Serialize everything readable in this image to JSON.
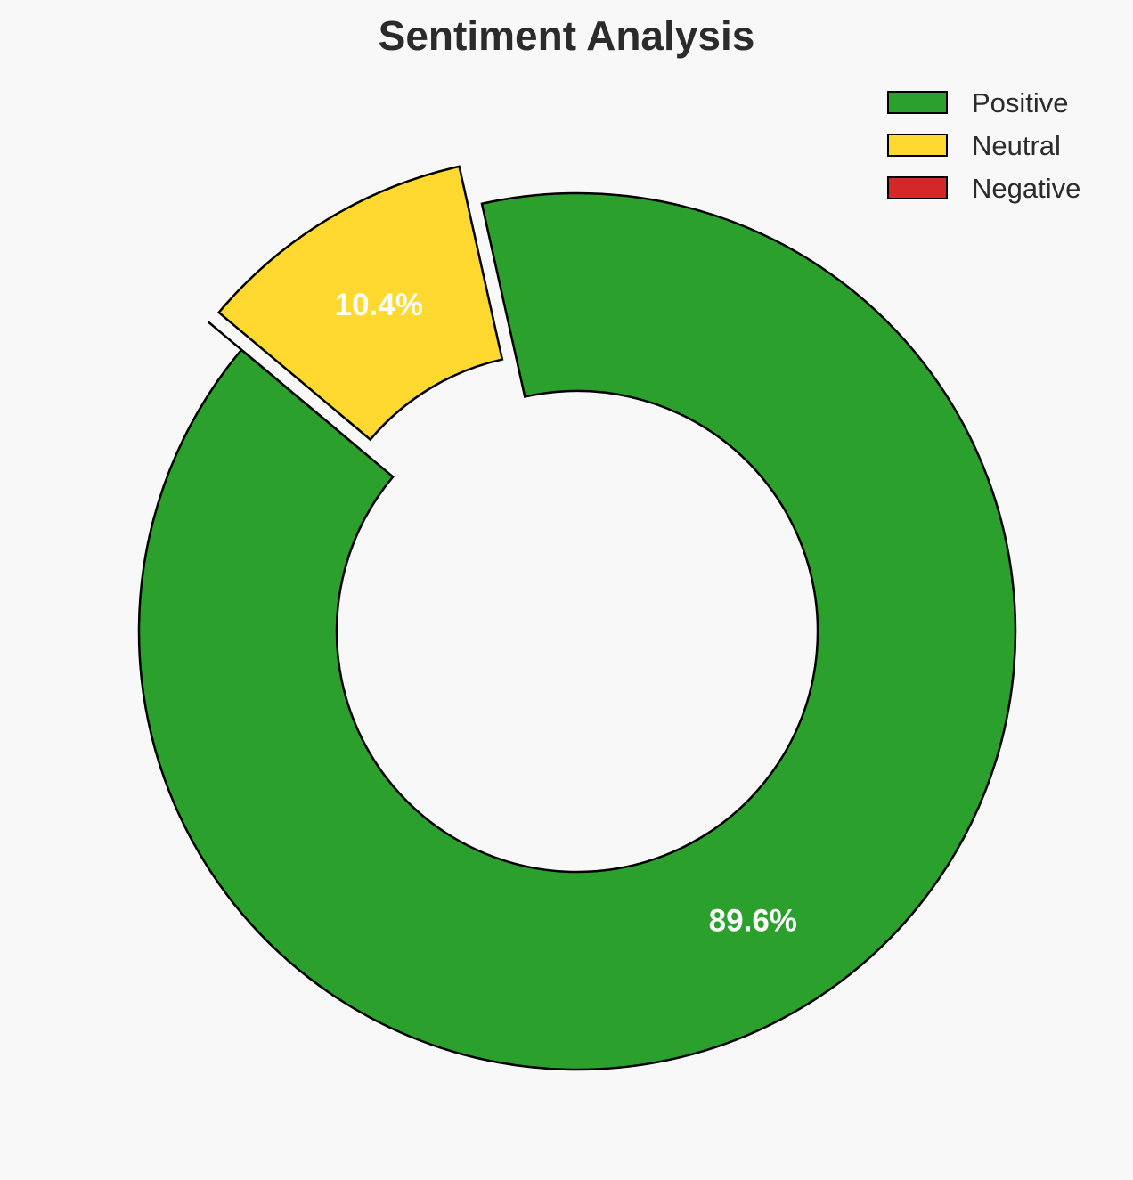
{
  "chart_data": {
    "type": "pie",
    "variant": "donut",
    "title": "Sentiment Analysis",
    "categories": [
      "Positive",
      "Neutral",
      "Negative"
    ],
    "values": [
      89.6,
      10.4,
      0.0
    ],
    "labels": [
      "89.6%",
      "10.4%",
      ""
    ],
    "colors": [
      "#2ca02c",
      "#ffd92f",
      "#d62728"
    ],
    "exploded": [
      false,
      true,
      true
    ],
    "start_angle_deg": 140,
    "direction": "counterclockwise",
    "edge_color": "#000000",
    "legend": {
      "position": "top-right",
      "entries": [
        "Positive",
        "Neutral",
        "Negative"
      ]
    }
  }
}
